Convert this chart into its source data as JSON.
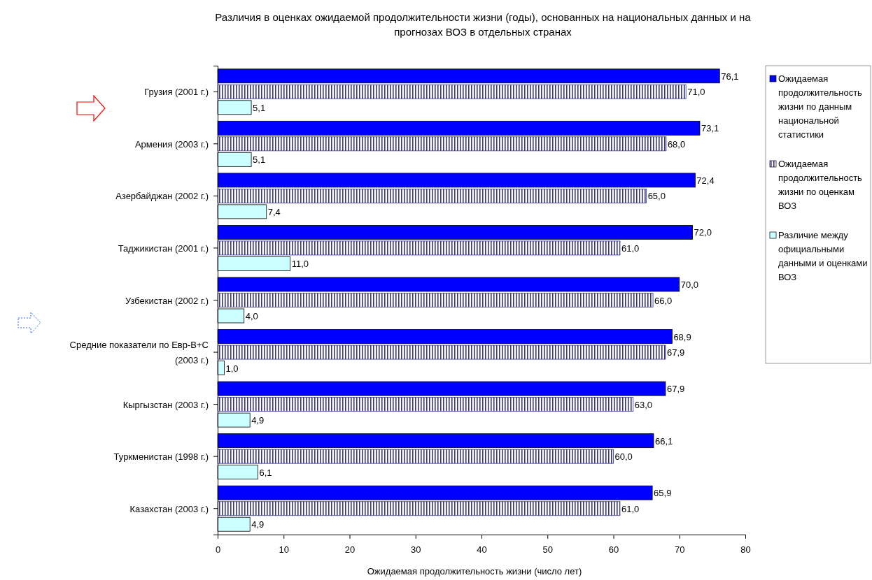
{
  "chart_data": {
    "type": "bar",
    "orientation": "horizontal",
    "title": "Различия в оценках ожидаемой продолжительности жизни (годы), основанных на национальных данных и на прогнозах ВОЗ в отдельных странах",
    "xlabel": "Ожидаемая продолжительность жизни (число лет)",
    "categories": [
      "Грузия (2001 г.)",
      "Армения (2003 г.)",
      "Азербайджан (2002 г.)",
      "Таджикистан (2001 г.)",
      "Узбекистан (2002 г.)",
      "Средние показатели по Евр-В+С (2003 г.)",
      "Кыргызстан (2003 г.)",
      "Туркменистан (1998 г.)",
      "Казахстан (2003 г.)"
    ],
    "series": [
      {
        "name": "Ожидаемая продолжительность жизни по данным национальной статистики",
        "color": "#0000ff",
        "values": [
          76.1,
          73.1,
          72.4,
          72.0,
          70.0,
          68.9,
          67.9,
          66.1,
          65.9
        ],
        "value_labels": [
          "76,1",
          "73,1",
          "72,4",
          "72,0",
          "70,0",
          "68,9",
          "67,9",
          "66,1",
          "65,9"
        ]
      },
      {
        "name": "Ожидаемая продолжительность жизни по оценкам ВОЗ",
        "color": "#333399",
        "values": [
          71.0,
          68.0,
          65.0,
          61.0,
          66.0,
          67.9,
          63.0,
          60.0,
          61.0
        ],
        "value_labels": [
          "71,0",
          "68,0",
          "65,0",
          "61,0",
          "66,0",
          "67,9",
          "63,0",
          "60,0",
          "61,0"
        ]
      },
      {
        "name": "Различие между официальными данными и оценками ВОЗ",
        "color": "#ccffff",
        "values": [
          5.1,
          5.1,
          7.4,
          11.0,
          4.0,
          1.0,
          4.9,
          6.1,
          4.9
        ],
        "value_labels": [
          "5,1",
          "5,1",
          "7,4",
          "11,0",
          "4,0",
          "1,0",
          "4,9",
          "6,1",
          "4,9"
        ]
      }
    ],
    "xlim": [
      0,
      80
    ],
    "xticks": [
      0,
      10,
      20,
      30,
      40,
      50,
      60,
      70,
      80
    ],
    "legend": "right"
  }
}
